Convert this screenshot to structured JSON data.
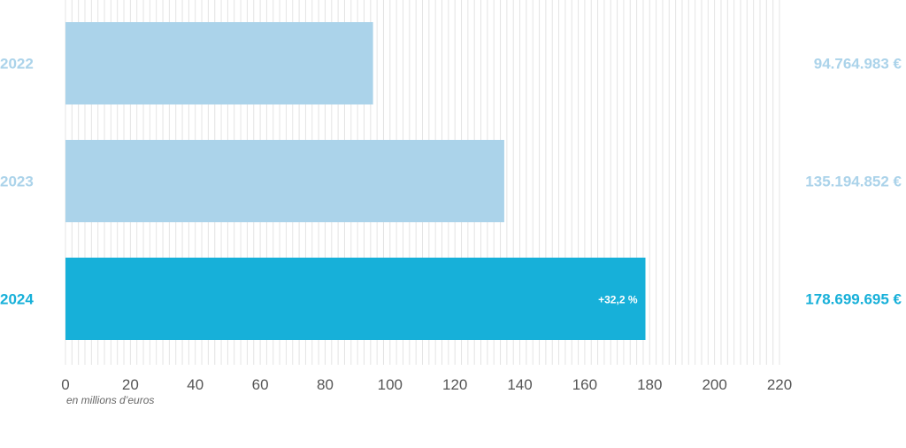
{
  "chart_data": {
    "type": "bar",
    "orientation": "horizontal",
    "categories": [
      "2022",
      "2023",
      "2024"
    ],
    "values": [
      94.764983,
      135.194852,
      178.699695
    ],
    "value_labels": [
      "94.764.983 €",
      "135.194.852 €",
      "178.699.695 €"
    ],
    "annotation": "+32,2 %",
    "x_ticks": [
      "0",
      "20",
      "40",
      "60",
      "80",
      "100",
      "120",
      "140",
      "160",
      "180",
      "200",
      "220"
    ],
    "xlim": [
      0,
      220
    ],
    "xlabel": "en millions d’euros",
    "grid": true,
    "colors": {
      "past": "#abd3ea",
      "current": "#17b0d9",
      "grid": "#e4e4e4",
      "ticks": "#555555"
    }
  }
}
